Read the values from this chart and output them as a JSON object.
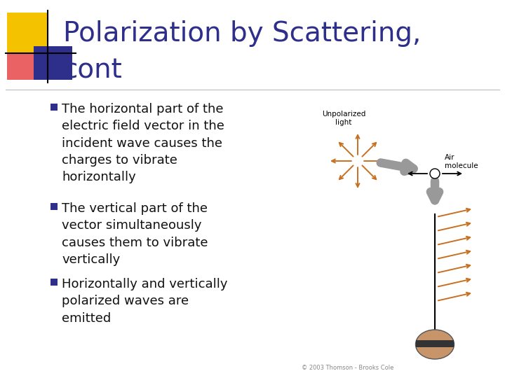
{
  "title_line1": "Polarization by Scattering,",
  "title_line2": "cont",
  "title_color": "#2E2E8B",
  "title_fontsize": 28,
  "background_color": "#FFFFFF",
  "bullet_marker_color": "#2E2E8B",
  "text_color": "#111111",
  "bullet_fontsize": 13,
  "bullets": [
    "The horizontal part of the\nelectric field vector in the\nincident wave causes the\ncharges to vibrate\nhorizontally",
    "The vertical part of the\nvector simultaneously\ncauses them to vibrate\nvertically",
    "Horizontally and vertically\npolarized waves are\nemitted"
  ],
  "logo_colors": {
    "yellow": "#F5C200",
    "red": "#E8474A",
    "blue": "#2E2E8B"
  },
  "arrow_color": "#C87020",
  "gray_color": "#999999",
  "copyright": "© 2003 Thomson - Brooks Cole"
}
